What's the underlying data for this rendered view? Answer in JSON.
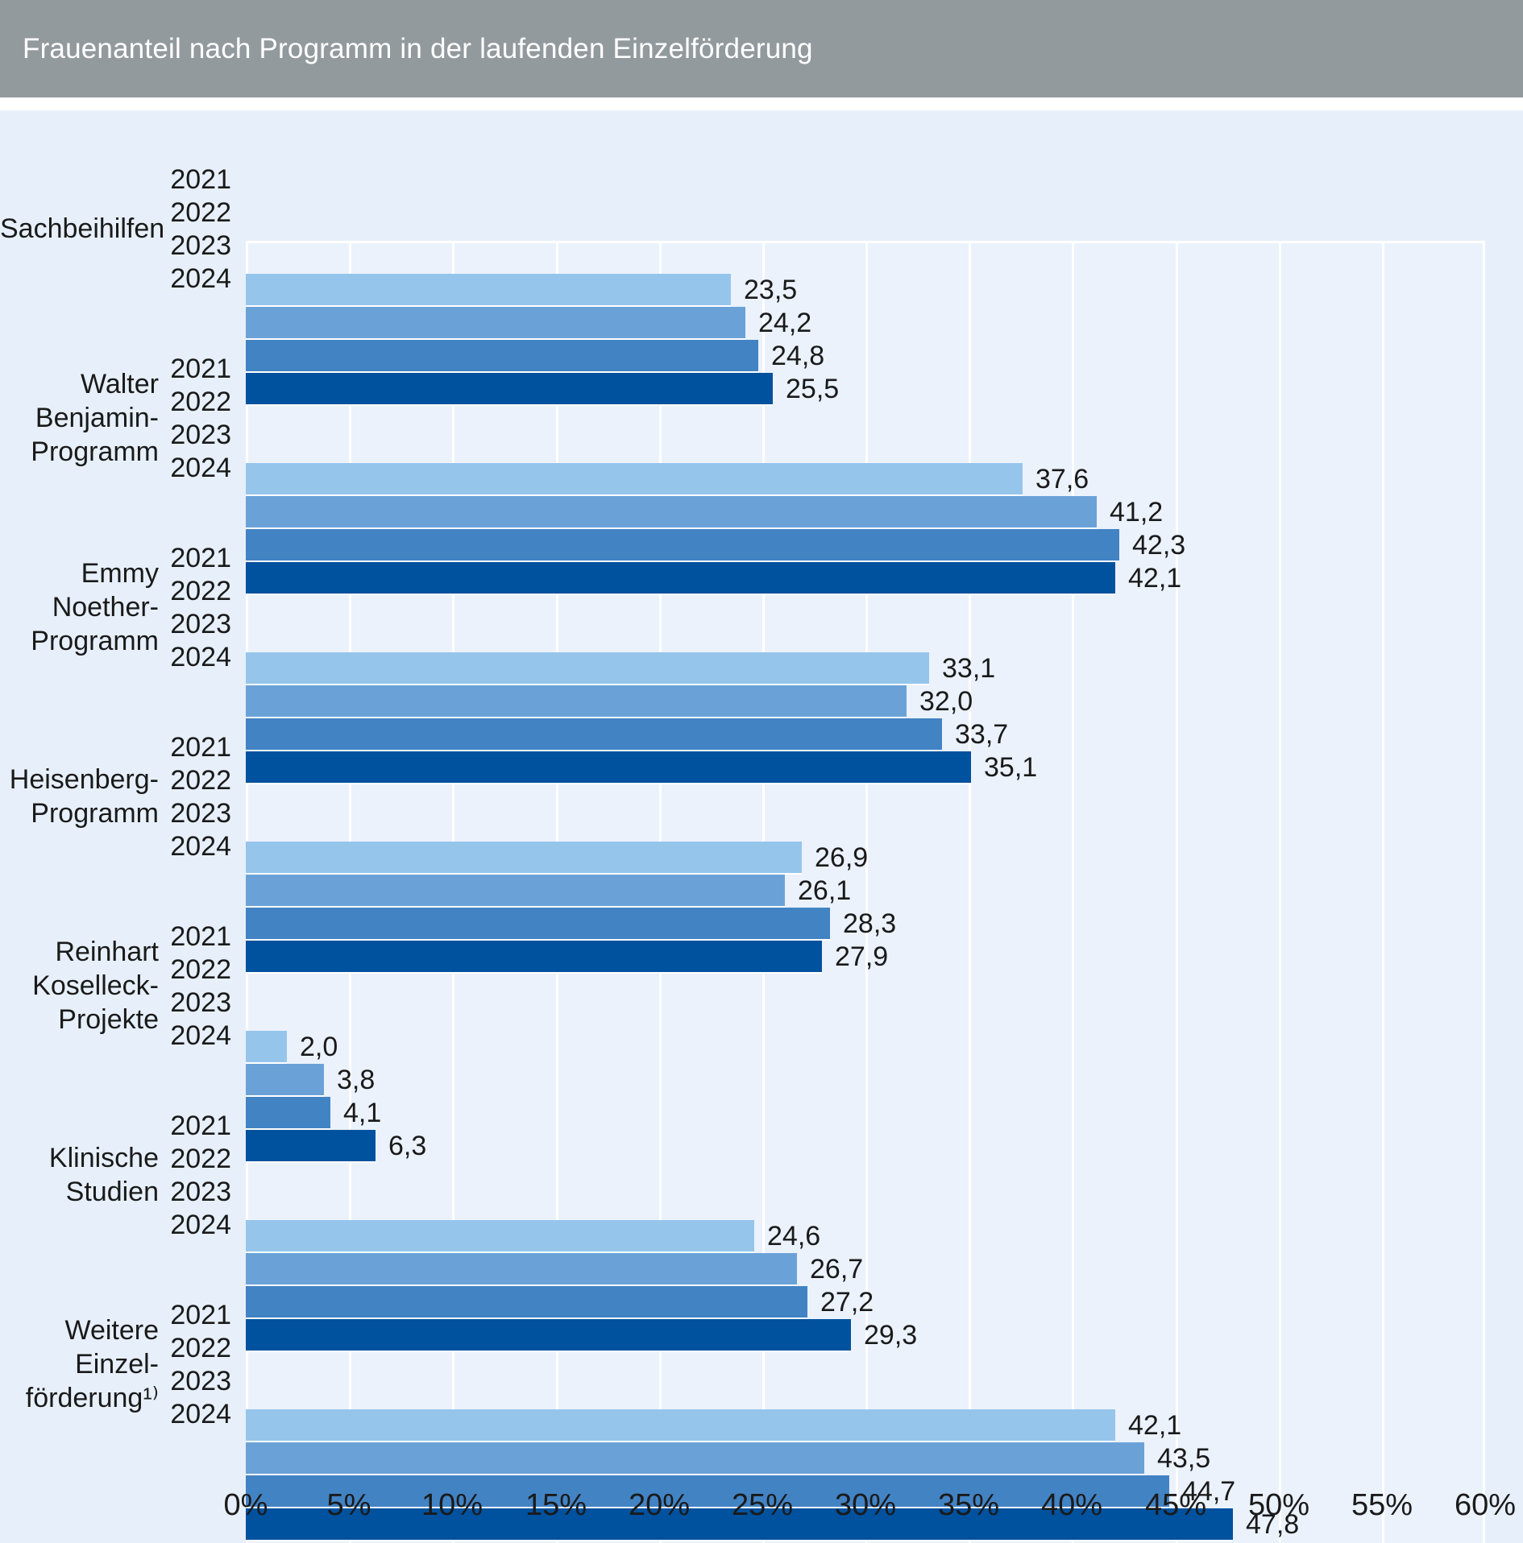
{
  "header": {
    "title": "Frauenanteil nach Programm in der laufenden Einzelförderung"
  },
  "chart_data": {
    "type": "bar",
    "orientation": "horizontal",
    "title": "Frauenanteil nach Programm in der laufenden Einzelförderung",
    "unit": "%",
    "decimal_separator": ",",
    "legend": "none",
    "grid": "vertical white gridlines on light blue plot background",
    "xlim": [
      0,
      60
    ],
    "x_tick_step": 5,
    "x_tick_labels": [
      "0%",
      "5%",
      "10%",
      "15%",
      "20%",
      "25%",
      "30%",
      "35%",
      "40%",
      "45%",
      "50%",
      "55%",
      "60%"
    ],
    "years": [
      "2021",
      "2022",
      "2023",
      "2024"
    ],
    "year_colors": [
      "#96c5ec",
      "#6aa2d8",
      "#4283c4",
      "#00519e"
    ],
    "groups": [
      {
        "label_lines": [
          "Sachbeihilfen"
        ],
        "values": [
          23.5,
          24.2,
          24.8,
          25.5
        ],
        "value_labels": [
          "23,5",
          "24,2",
          "24,8",
          "25,5"
        ]
      },
      {
        "label_lines": [
          "Walter",
          "Benjamin-",
          "Programm"
        ],
        "values": [
          37.6,
          41.2,
          42.3,
          42.1
        ],
        "value_labels": [
          "37,6",
          "41,2",
          "42,3",
          "42,1"
        ]
      },
      {
        "label_lines": [
          "Emmy",
          "Noether-",
          "Programm"
        ],
        "values": [
          33.1,
          32.0,
          33.7,
          35.1
        ],
        "value_labels": [
          "33,1",
          "32,0",
          "33,7",
          "35,1"
        ]
      },
      {
        "label_lines": [
          "Heisenberg-",
          "Programm"
        ],
        "values": [
          26.9,
          26.1,
          28.3,
          27.9
        ],
        "value_labels": [
          "26,9",
          "26,1",
          "28,3",
          "27,9"
        ]
      },
      {
        "label_lines": [
          "Reinhart",
          "Koselleck-",
          "Projekte"
        ],
        "values": [
          2.0,
          3.8,
          4.1,
          6.3
        ],
        "value_labels": [
          "2,0",
          "3,8",
          "4,1",
          "6,3"
        ]
      },
      {
        "label_lines": [
          "Klinische",
          "Studien"
        ],
        "values": [
          24.6,
          26.7,
          27.2,
          29.3
        ],
        "value_labels": [
          "24,6",
          "26,7",
          "27,2",
          "29,3"
        ]
      },
      {
        "label_lines": [
          "Weitere",
          "Einzel-",
          "förderung¹⁾"
        ],
        "values": [
          42.1,
          43.5,
          44.7,
          47.8
        ],
        "value_labels": [
          "42,1",
          "43,5",
          "44,7",
          "47,8"
        ]
      }
    ]
  },
  "colors": {
    "title_bar_bg": "#939a9e",
    "title_text": "#ffffff",
    "page_bg": "#e7f0fa",
    "plot_bg": "#ebf2fc",
    "gridline": "#ffffff",
    "label_text": "#1a1a1a"
  }
}
